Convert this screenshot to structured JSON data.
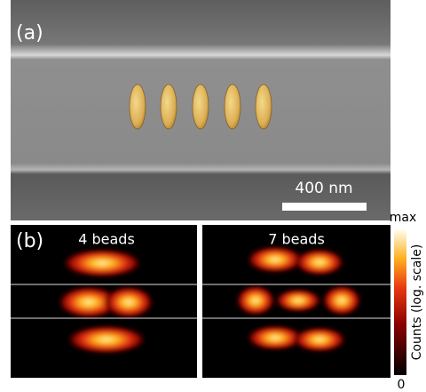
{
  "panel_a": {
    "label": "(a)",
    "scale_bar": "400 nm"
  },
  "panel_b": {
    "label": "(b)",
    "left_title": "4 beads",
    "right_title": "7 beads"
  },
  "colorbar": {
    "max_label": "max",
    "min_label": "0",
    "axis_label": "Counts (log. scale)"
  }
}
